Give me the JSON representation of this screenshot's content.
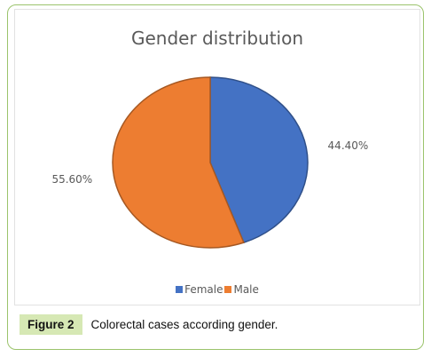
{
  "chart_data": {
    "type": "pie",
    "title": "Gender distribution",
    "categories": [
      "Female",
      "Male"
    ],
    "values": [
      44.4,
      55.6
    ],
    "data_labels": [
      "44.40%",
      "55.60%"
    ],
    "colors": [
      "#4472c4",
      "#ed7d31"
    ],
    "legend_position": "bottom"
  },
  "caption": {
    "label": "Figure 2",
    "text": "Colorectal cases according gender."
  }
}
